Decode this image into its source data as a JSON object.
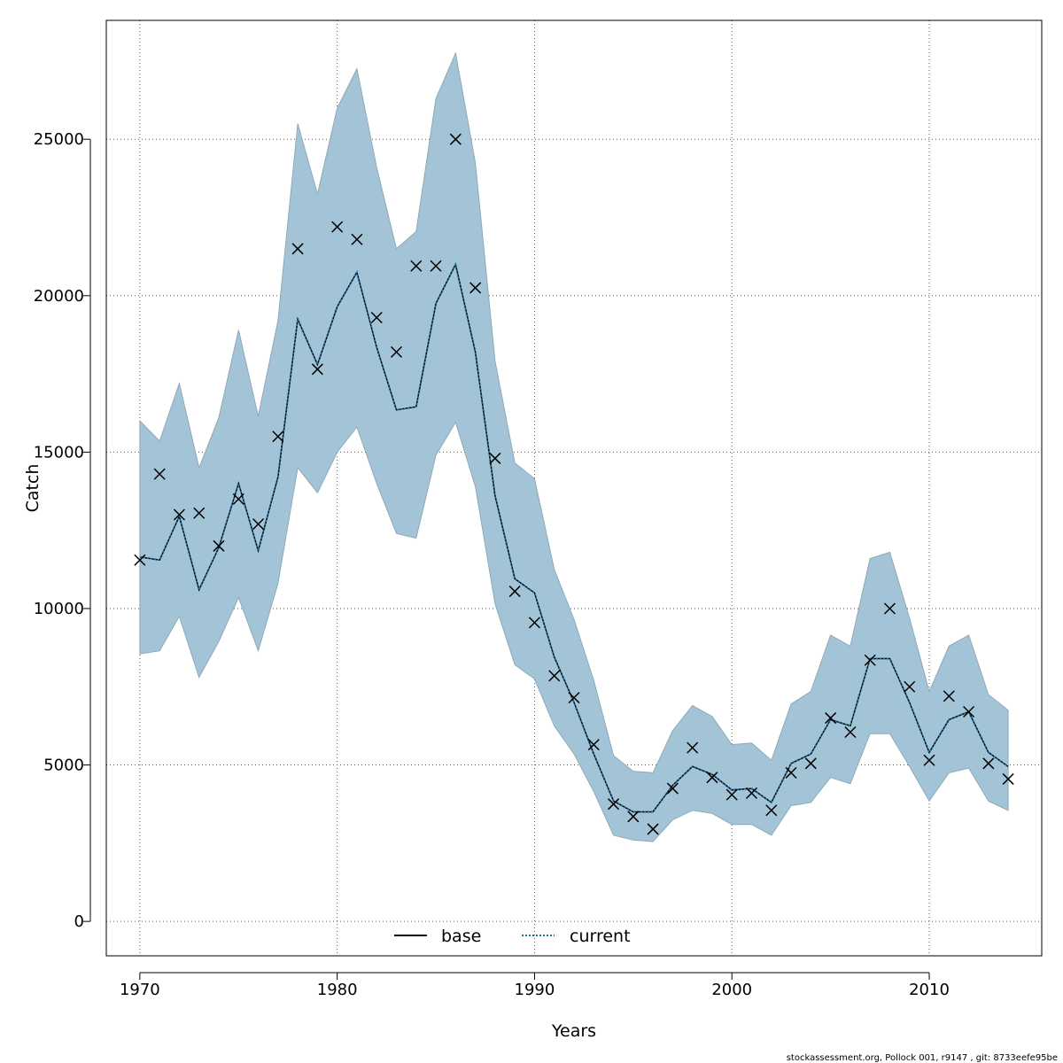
{
  "chart_data": {
    "type": "line",
    "xlabel": "Years",
    "ylabel": "Catch",
    "xlim": [
      1968.3,
      2015.7
    ],
    "ylim": [
      -1100,
      28800
    ],
    "x_ticks": [
      1970,
      1980,
      1990,
      2000,
      2010
    ],
    "y_ticks": [
      0,
      5000,
      10000,
      15000,
      20000,
      25000
    ],
    "grid": true,
    "legend_position": "bottom-center",
    "years": [
      1970,
      1971,
      1972,
      1973,
      1974,
      1975,
      1976,
      1977,
      1978,
      1979,
      1980,
      1981,
      1982,
      1983,
      1984,
      1985,
      1986,
      1987,
      1988,
      1989,
      1990,
      1991,
      1992,
      1993,
      1994,
      1995,
      1996,
      1997,
      1998,
      1999,
      2000,
      2001,
      2002,
      2003,
      2004,
      2005,
      2006,
      2007,
      2008,
      2009,
      2010,
      2011,
      2012,
      2013,
      2014
    ],
    "observed": [
      11550,
      14300,
      13000,
      13050,
      12000,
      13500,
      12700,
      15500,
      21500,
      17650,
      22200,
      21800,
      19300,
      18200,
      20950,
      20950,
      25000,
      20250,
      14800,
      10550,
      9550,
      7850,
      7150,
      5650,
      3750,
      3350,
      2950,
      4250,
      5550,
      4600,
      4050,
      4100,
      3550,
      4750,
      5050,
      6500,
      6050,
      8350,
      10000,
      7500,
      5150,
      7200,
      6700,
      5050,
      4550
    ],
    "fitted": [
      11650,
      11550,
      12950,
      10600,
      11950,
      14000,
      11850,
      14200,
      19250,
      17800,
      19650,
      20750,
      18350,
      16350,
      16450,
      19750,
      21000,
      18200,
      13600,
      10950,
      10500,
      8450,
      7000,
      5350,
      3850,
      3500,
      3500,
      4350,
      4950,
      4700,
      4200,
      4250,
      3800,
      5050,
      5350,
      6450,
      6250,
      8400,
      8400,
      7000,
      5400,
      6450,
      6700,
      5400,
      4950
    ],
    "band_lower": [
      8550,
      8650,
      9750,
      7800,
      8950,
      10350,
      8650,
      10800,
      14500,
      13700,
      15000,
      15800,
      14000,
      12400,
      12250,
      14900,
      15950,
      13900,
      10150,
      8200,
      7750,
      6250,
      5350,
      4150,
      2750,
      2600,
      2550,
      3250,
      3550,
      3450,
      3100,
      3100,
      2750,
      3700,
      3800,
      4600,
      4400,
      6000,
      6000,
      4950,
      3850,
      4750,
      4900,
      3850,
      3550
    ],
    "band_upper": [
      16000,
      15350,
      17200,
      14500,
      16100,
      18900,
      16150,
      19200,
      25500,
      23250,
      26000,
      27250,
      24100,
      21500,
      22050,
      26300,
      27750,
      24250,
      17900,
      14650,
      14150,
      11250,
      9650,
      7700,
      5300,
      4800,
      4750,
      6100,
      6900,
      6550,
      5650,
      5700,
      5150,
      6950,
      7350,
      9150,
      8800,
      11600,
      11800,
      9700,
      7350,
      8800,
      9150,
      7250,
      6750
    ],
    "series": [
      {
        "name": "base",
        "color": "#000000",
        "style": "solid"
      },
      {
        "name": "current",
        "color": "#1f6f9f",
        "style": "dotted"
      }
    ],
    "band_color": "#a3c4d6",
    "band_edge_color": "#8fa9b8"
  },
  "footer": "stockassessment.org, Pollock  001, r9147 , git: 8733eefe95be"
}
